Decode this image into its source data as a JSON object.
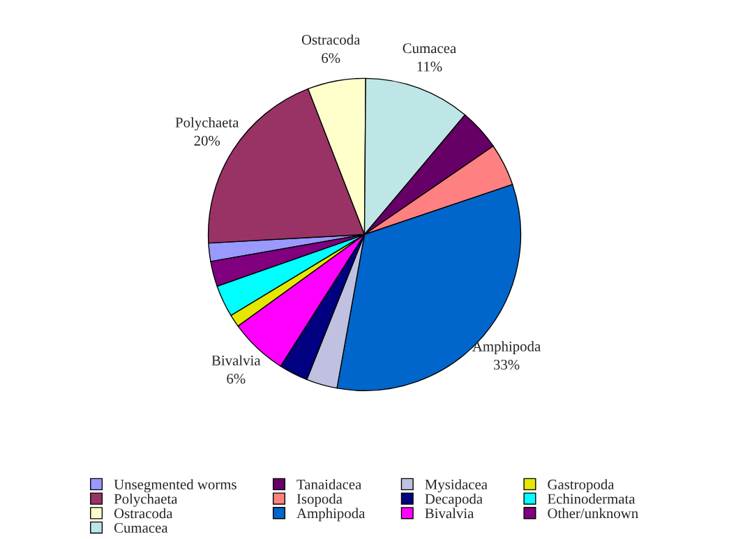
{
  "chart_data": {
    "type": "pie",
    "categories": [
      "Unsegmented worms",
      "Polychaeta",
      "Ostracoda",
      "Cumacea",
      "Tanaidacea",
      "Isopoda",
      "Amphipoda",
      "Mysidacea",
      "Decapoda",
      "Bivalvia",
      "Gastropoda",
      "Echinodermata",
      "Other/unknown"
    ],
    "values": [
      1.9,
      20,
      6,
      11,
      4.3,
      4.4,
      33,
      3.2,
      3.0,
      6,
      1.3,
      3.3,
      2.6
    ],
    "value_labels": [
      null,
      "20%",
      "6%",
      "11%",
      null,
      null,
      "33%",
      null,
      null,
      "6%",
      null,
      null,
      null
    ],
    "colors": [
      "#9999ff",
      "#993366",
      "#ffffcc",
      "#bfe6e6",
      "#660066",
      "#ff8080",
      "#0066cc",
      "#c0c0e0",
      "#000080",
      "#ff00ff",
      "#e6e600",
      "#00ffff",
      "#800080"
    ],
    "legend": "bottom"
  }
}
